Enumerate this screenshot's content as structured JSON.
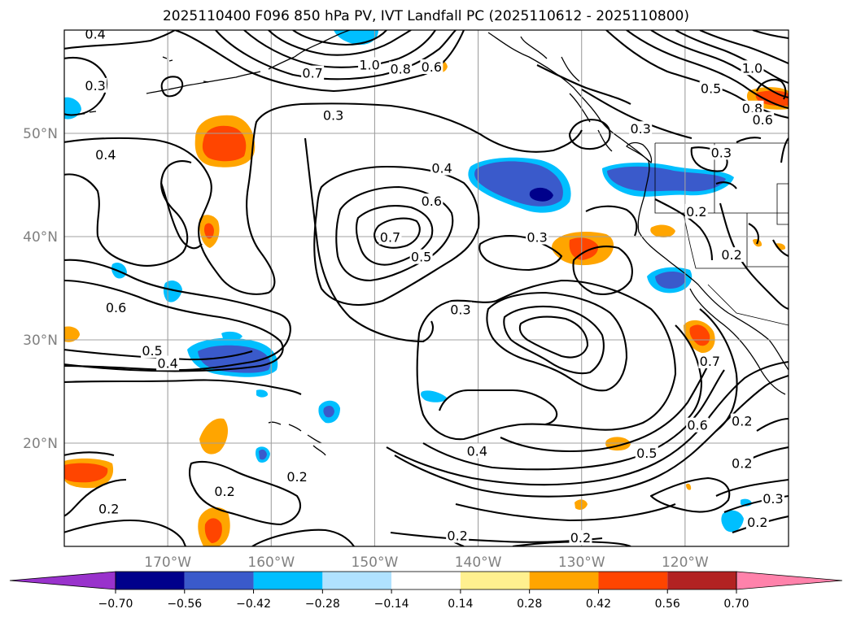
{
  "title": "2025110400 F096 850 hPa PV, IVT Landfall PC (2025110612 - 2025110800)",
  "map": {
    "lon_range": [
      -180,
      -110
    ],
    "lat_range": [
      10,
      60
    ],
    "lon_ticks": [
      {
        "lon": -170,
        "label": "170°W"
      },
      {
        "lon": -160,
        "label": "160°W"
      },
      {
        "lon": -150,
        "label": "150°W"
      },
      {
        "lon": -140,
        "label": "140°W"
      },
      {
        "lon": -130,
        "label": "130°W"
      },
      {
        "lon": -120,
        "label": "120°W"
      }
    ],
    "lat_ticks": [
      {
        "lat": 50,
        "label": "50°N"
      },
      {
        "lat": 40,
        "label": "40°N"
      },
      {
        "lat": 30,
        "label": "30°N"
      },
      {
        "lat": 20,
        "label": "20°N"
      }
    ],
    "gridlines": true
  },
  "contour_labels": [
    {
      "text": "0.4",
      "lon": -177,
      "lat": 59.5
    },
    {
      "text": "0.3",
      "lon": -177,
      "lat": 54.5
    },
    {
      "text": "0.4",
      "lon": -176,
      "lat": 47.8
    },
    {
      "text": "0.7",
      "lon": -156,
      "lat": 55.7
    },
    {
      "text": "1.0",
      "lon": -150.5,
      "lat": 56.5
    },
    {
      "text": "0.8",
      "lon": -147.5,
      "lat": 56.1
    },
    {
      "text": "0.6",
      "lon": -144.5,
      "lat": 56.3
    },
    {
      "text": "0.3",
      "lon": -154,
      "lat": 51.6
    },
    {
      "text": "0.4",
      "lon": -143.5,
      "lat": 46.5
    },
    {
      "text": "0.6",
      "lon": -144.5,
      "lat": 43.3
    },
    {
      "text": "0.7",
      "lon": -148.5,
      "lat": 39.8
    },
    {
      "text": "0.5",
      "lon": -145.5,
      "lat": 37.9
    },
    {
      "text": "0.3",
      "lon": -134.3,
      "lat": 39.8
    },
    {
      "text": "0.3",
      "lon": -124.3,
      "lat": 50.3
    },
    {
      "text": "1.0",
      "lon": -113.5,
      "lat": 56.2
    },
    {
      "text": "0.5",
      "lon": -117.5,
      "lat": 54.2
    },
    {
      "text": "0.8",
      "lon": -113.5,
      "lat": 52.3
    },
    {
      "text": "0.6",
      "lon": -112.5,
      "lat": 51.2
    },
    {
      "text": "0.3",
      "lon": -116.5,
      "lat": 48.0
    },
    {
      "text": "0.2",
      "lon": -118.9,
      "lat": 42.3
    },
    {
      "text": "0.2",
      "lon": -115.5,
      "lat": 38.1
    },
    {
      "text": "0.6",
      "lon": -175,
      "lat": 33.0
    },
    {
      "text": "0.3",
      "lon": -141.7,
      "lat": 32.8
    },
    {
      "text": "0.5",
      "lon": -171.5,
      "lat": 28.8
    },
    {
      "text": "0.4",
      "lon": -170,
      "lat": 27.6
    },
    {
      "text": "0.7",
      "lon": -117.6,
      "lat": 27.8
    },
    {
      "text": "0.6",
      "lon": -118.8,
      "lat": 21.6
    },
    {
      "text": "0.2",
      "lon": -114.5,
      "lat": 22.0
    },
    {
      "text": "0.5",
      "lon": -123.7,
      "lat": 18.9
    },
    {
      "text": "0.4",
      "lon": -140.1,
      "lat": 19.1
    },
    {
      "text": "0.2",
      "lon": -114.5,
      "lat": 17.9
    },
    {
      "text": "0.2",
      "lon": -157.5,
      "lat": 16.6
    },
    {
      "text": "0.2",
      "lon": -164.5,
      "lat": 15.2
    },
    {
      "text": "0.2",
      "lon": -175.7,
      "lat": 13.5
    },
    {
      "text": "0.3",
      "lon": -111.5,
      "lat": 14.5
    },
    {
      "text": "0.2",
      "lon": -113,
      "lat": 12.2
    },
    {
      "text": "0.2",
      "lon": -142,
      "lat": 10.9
    },
    {
      "text": "0.2",
      "lon": -130.1,
      "lat": 10.7
    }
  ],
  "colorbar": {
    "levels": [
      "−0.70",
      "−0.56",
      "−0.42",
      "−0.28",
      "−0.14",
      "0.14",
      "0.28",
      "0.42",
      "0.56",
      "0.70"
    ],
    "colors": [
      "#9932cc",
      "#00008b",
      "#3a5acb",
      "#00bfff",
      "#b0e2ff",
      "#ffffff",
      "#fff08f",
      "#ffa500",
      "#ff4500",
      "#b22222",
      "#ff82ab"
    ]
  }
}
